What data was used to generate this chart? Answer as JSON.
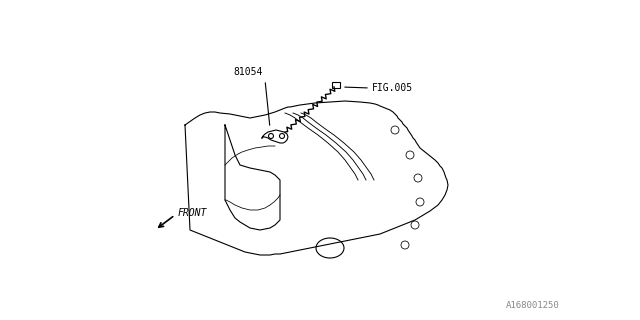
{
  "bg_color": "#ffffff",
  "line_color": "#000000",
  "label_81054": "81054",
  "label_fig005": "FIG.005",
  "label_front": "FRONT",
  "label_part_num": "A168001250",
  "fig_width": 6.4,
  "fig_height": 3.2,
  "dpi": 100
}
